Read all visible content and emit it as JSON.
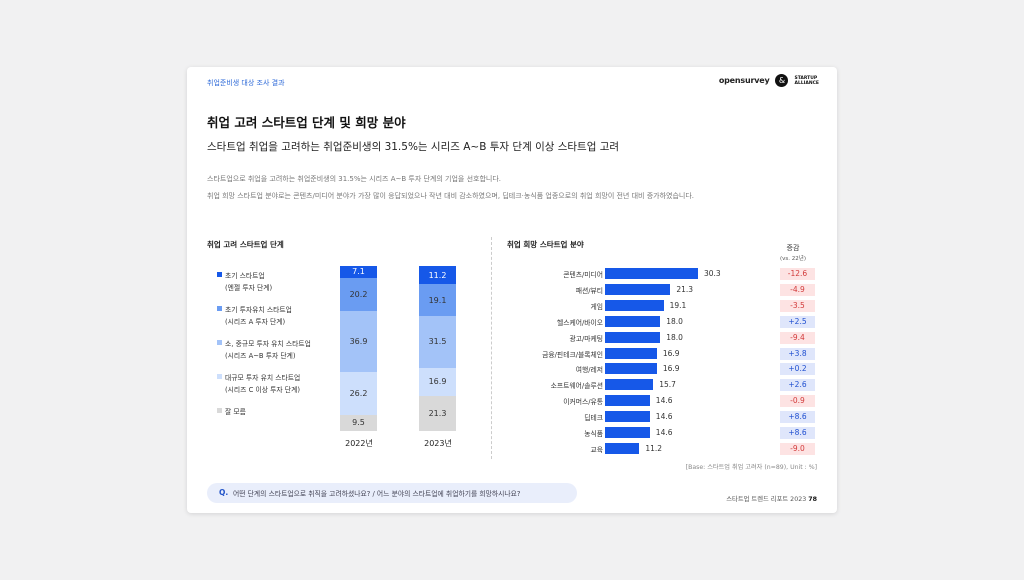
{
  "header": {
    "tag": "취업준비생 대상 조사 결과",
    "logo_text": "opensurvey",
    "logo_mark": "&",
    "logo_sub_1": "STARTUP",
    "logo_sub_2": "ALLIANCE"
  },
  "title": "취업 고려 스타트업 단계 및 희망 분야",
  "subtitle": "스타트업 취업을 고려하는 취업준비생의 31.5%는 시리즈 A~B 투자 단계 이상 스타트업 고려",
  "desc": [
    "스타트업으로 취업을 고려하는 취업준비생의 31.5%는 시리즈 A~B 투자 단계의 기업을 선호합니다.",
    "취업 희망 스타트업 분야로는 콘텐츠/미디어 분야가 가장 많이 응답되었으나 작년 대비 감소하였으며, 딥테크·농식품 업종으로의 취업 희망이 전년 대비 증가하였습니다."
  ],
  "left_section_title": "취업 고려 스타트업 단계",
  "right_section_title": "취업 희망 스타트업 분야",
  "change_header": "증감",
  "change_sub": "(vs. 22년)",
  "base_note": "[Base: 스타트업 취업 고려자 (n=89), Unit : %]",
  "question": {
    "label": "Q.",
    "text": "어떤 단계의 스타트업으로 취직을 고려하셨나요? / 어느 분야의 스타트업에 취업하기를 희망하시나요?"
  },
  "footer": {
    "text": "스타트업 트렌드 리포트 2023",
    "page": "78"
  },
  "colors": {
    "accent": "#1658e8",
    "positive_bg": "#dfe6fb",
    "positive_text": "#1f4fd0",
    "negative_bg": "#fde3e3",
    "negative_text": "#d23a3a"
  },
  "chart_data": [
    {
      "type": "bar",
      "stacked": true,
      "categories": [
        "2022년",
        "2023년"
      ],
      "series": [
        {
          "name": "초기 스타트업",
          "name_line2": "(엔젤 투자 단계)",
          "color": "#1658e8",
          "text_color": "#ffffff",
          "values": [
            7.1,
            11.2
          ]
        },
        {
          "name": "초기 투자유치 스타트업",
          "name_line2": "(시리즈 A 투자 단계)",
          "color": "#6a9cf2",
          "text_color": "#333333",
          "values": [
            20.2,
            19.1
          ]
        },
        {
          "name": "소, 중규모 투자 유치 스타트업",
          "name_line2": "(시리즈 A~B 투자 단계)",
          "color": "#a3c3f8",
          "text_color": "#333333",
          "values": [
            36.9,
            31.5
          ]
        },
        {
          "name": "대규모 투자 유치 스타트업",
          "name_line2": "(시리즈 C 이상 투자 단계)",
          "color": "#cddffc",
          "text_color": "#333333",
          "values": [
            26.2,
            16.9
          ]
        },
        {
          "name": "잘 모름",
          "name_line2": "",
          "color": "#d9d9d9",
          "text_color": "#333333",
          "values": [
            9.5,
            21.3
          ]
        }
      ]
    },
    {
      "type": "bar",
      "orientation": "horizontal",
      "categories": [
        "콘텐츠/미디어",
        "패션/뷰티",
        "게임",
        "헬스케어/바이오",
        "광고/마케팅",
        "금융/핀테크/블록체인",
        "여행/레저",
        "소프트웨어/솔루션",
        "이커머스/유통",
        "딥테크",
        "농식품",
        "교육"
      ],
      "values": [
        30.3,
        21.3,
        19.1,
        18.0,
        18.0,
        16.9,
        16.9,
        15.7,
        14.6,
        14.6,
        14.6,
        11.2
      ],
      "value_labels": [
        "30.3",
        "21.3",
        "19.1",
        "18.0",
        "18.0",
        "16.9",
        "16.9",
        "15.7",
        "14.6",
        "14.6",
        "14.6",
        "11.2"
      ],
      "change_vs_22": [
        "-12.6",
        "-4.9",
        "-3.5",
        "+2.5",
        "-9.4",
        "+3.8",
        "+0.2",
        "+2.6",
        "-0.9",
        "+8.6",
        "+8.6",
        "-9.0"
      ]
    }
  ]
}
